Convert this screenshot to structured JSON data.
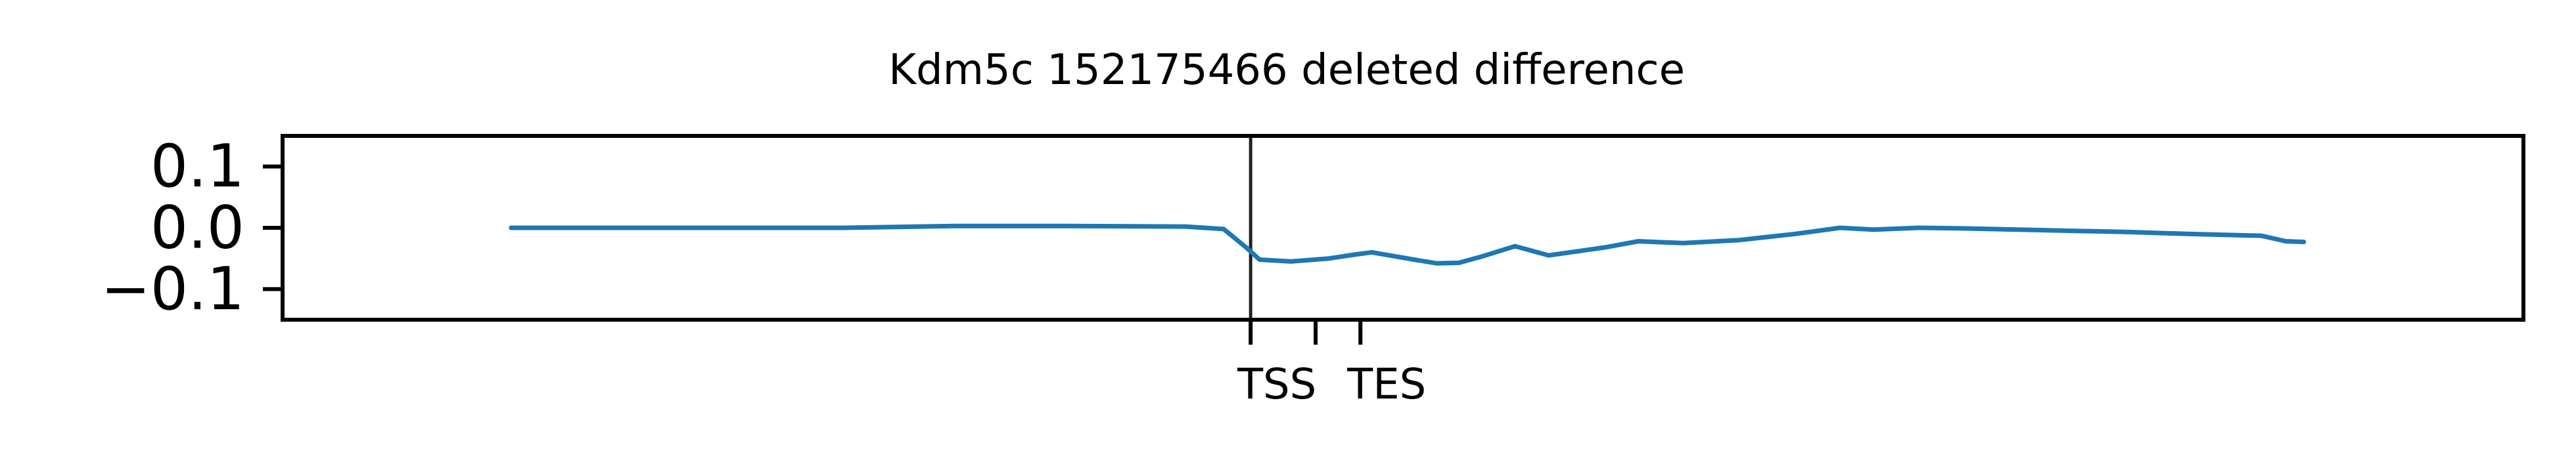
{
  "chart_data": {
    "type": "line",
    "title": "Kdm5c 152175466 deleted difference",
    "xlabel": "",
    "ylabel": "",
    "xlim": [
      0,
      100
    ],
    "ylim": [
      -0.15,
      0.15
    ],
    "grid": false,
    "legend": "none",
    "y_ticks": [
      {
        "value": 0.1,
        "label": "0.1"
      },
      {
        "value": 0.0,
        "label": "0.0"
      },
      {
        "value": -0.1,
        "label": "−0.1"
      }
    ],
    "x_ticks": [
      {
        "value": 43.2,
        "label": "TSS"
      },
      {
        "value": 46.1,
        "label": ""
      },
      {
        "value": 48.1,
        "label": "TES"
      }
    ],
    "vertical_lines": [
      {
        "x": 43.2,
        "color": "#222222"
      }
    ],
    "series": [
      {
        "color": "#1f77b4",
        "points": [
          [
            10.2,
            0.0
          ],
          [
            15,
            0.0
          ],
          [
            20,
            0.0
          ],
          [
            25,
            0.0
          ],
          [
            30,
            0.003
          ],
          [
            35,
            0.003
          ],
          [
            40.3,
            0.002
          ],
          [
            42,
            -0.002
          ],
          [
            43,
            -0.032
          ],
          [
            43.6,
            -0.052
          ],
          [
            45,
            -0.055
          ],
          [
            46.7,
            -0.05
          ],
          [
            47.6,
            -0.045
          ],
          [
            48.6,
            -0.04
          ],
          [
            50.5,
            -0.052
          ],
          [
            51.5,
            -0.058
          ],
          [
            52.5,
            -0.057
          ],
          [
            53.5,
            -0.047
          ],
          [
            55,
            -0.03
          ],
          [
            56.5,
            -0.045
          ],
          [
            59,
            -0.032
          ],
          [
            60.5,
            -0.022
          ],
          [
            62.5,
            -0.025
          ],
          [
            65,
            -0.02
          ],
          [
            67.5,
            -0.01
          ],
          [
            69.5,
            0.0
          ],
          [
            71,
            -0.003
          ],
          [
            73,
            0.0
          ],
          [
            75,
            -0.001
          ],
          [
            77.5,
            -0.003
          ],
          [
            80,
            -0.005
          ],
          [
            82.5,
            -0.007
          ],
          [
            85,
            -0.01
          ],
          [
            88.3,
            -0.013
          ],
          [
            89.4,
            -0.022
          ],
          [
            90.2,
            -0.023
          ]
        ]
      }
    ]
  }
}
